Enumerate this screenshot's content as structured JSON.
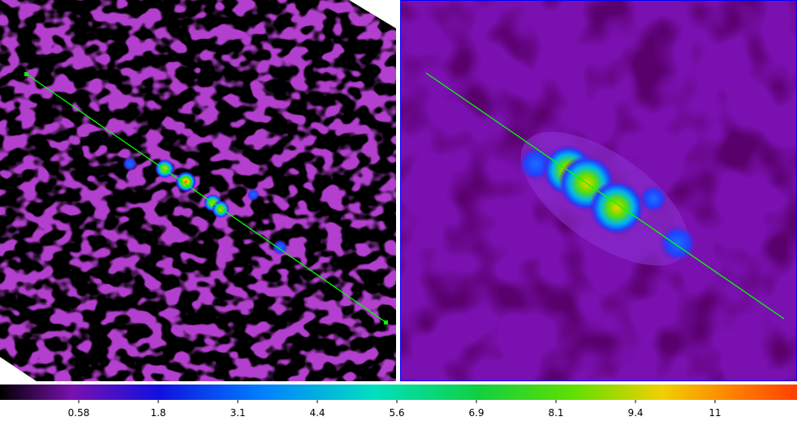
{
  "colorbar": {
    "ticks": [
      "0.58",
      "1.8",
      "3.1",
      "4.4",
      "5.6",
      "6.9",
      "8.1",
      "9.4",
      "11"
    ]
  }
}
